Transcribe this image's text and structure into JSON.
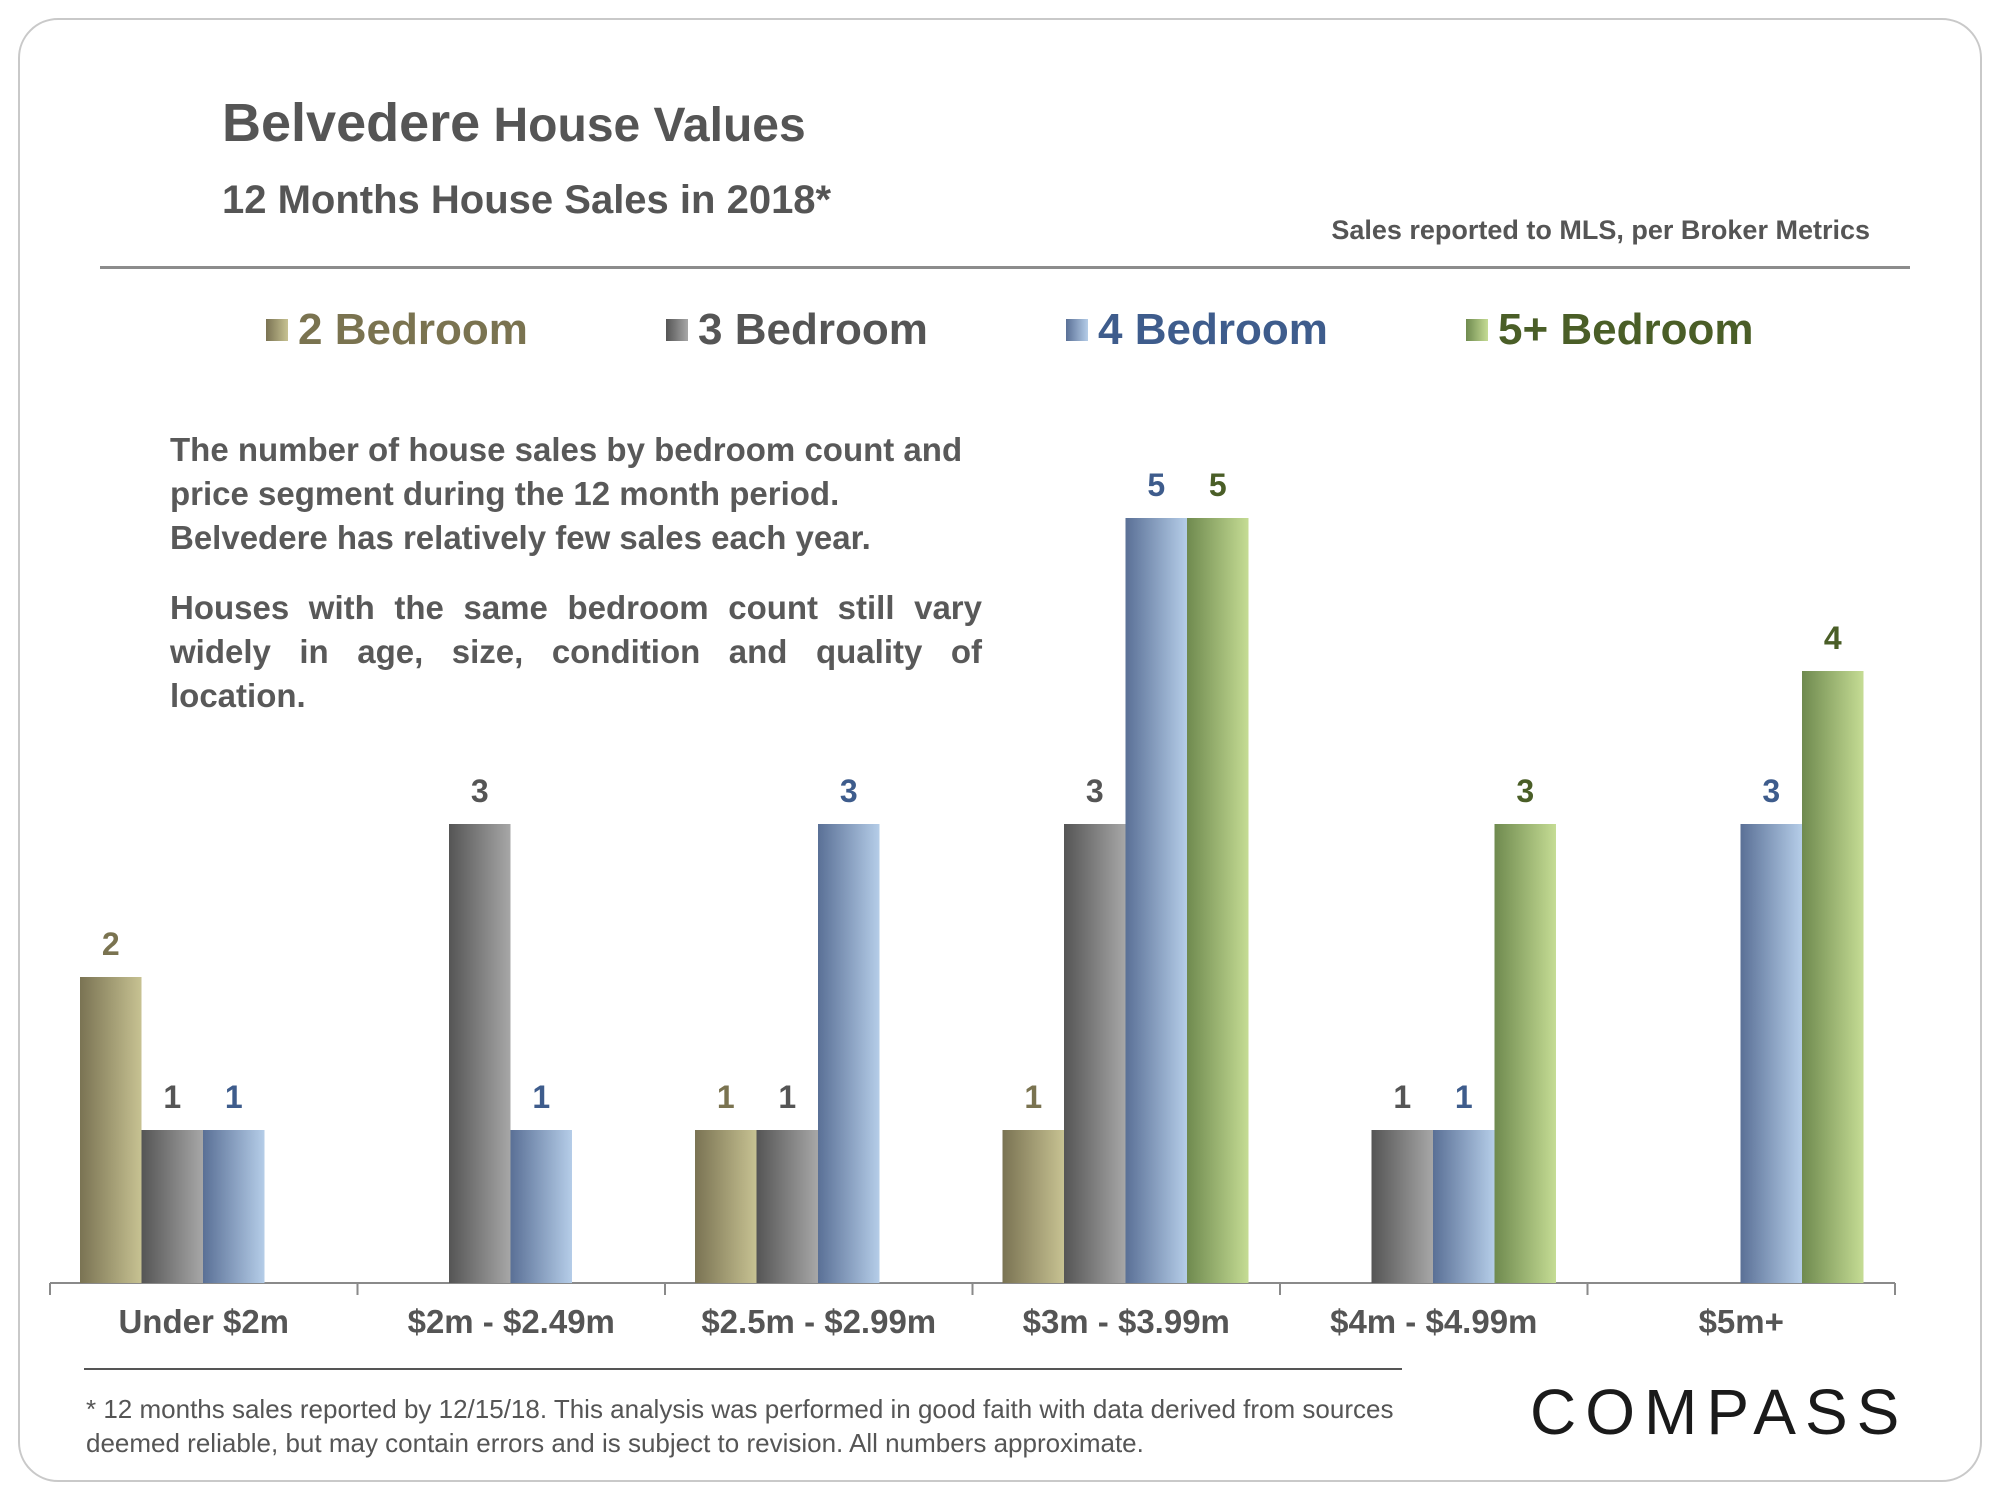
{
  "title_part1": "Belvedere",
  "title_part2": " House Values",
  "subtitle": "12 Months House Sales in 2018*",
  "source_note": "Sales reported to MLS, per Broker Metrics",
  "description": {
    "p1": "The number of house sales by bedroom count and price segment during the 12 month period. Belvedere has relatively few sales each year.",
    "p2": "Houses with the same bedroom count still vary widely in age, size, condition and quality of location."
  },
  "footnote": "* 12 months sales reported by 12/15/18. This analysis was performed in good faith with data derived from sources deemed reliable, but may contain errors and is subject to revision. All numbers approximate.",
  "logo_text": "COMPASS",
  "chart_data": {
    "type": "bar",
    "title": "12 Months House Sales in 2018*",
    "xlabel": "",
    "ylabel": "",
    "ylim": [
      0,
      6
    ],
    "grid": false,
    "legend_position": "top",
    "categories": [
      "Under $2m",
      "$2m - $2.49m",
      "$2.5m - $2.99m",
      "$3m - $3.99m",
      "$4m - $4.99m",
      "$5m+"
    ],
    "series": [
      {
        "name": "2 Bedroom",
        "values": [
          2,
          null,
          1,
          1,
          null,
          null
        ],
        "color": "#7a7353",
        "color_light": "#c7c292",
        "label_color": "#7a7350"
      },
      {
        "name": "3 Bedroom",
        "values": [
          1,
          3,
          1,
          3,
          1,
          null
        ],
        "color": "#555555",
        "color_light": "#a7a7a7",
        "label_color": "#555555"
      },
      {
        "name": "4 Bedroom",
        "values": [
          1,
          1,
          3,
          5,
          1,
          3
        ],
        "color": "#5a7096",
        "color_light": "#b5cde8",
        "label_color": "#3e5c8c"
      },
      {
        "name": "5+ Bedroom",
        "values": [
          null,
          null,
          null,
          5,
          3,
          4
        ],
        "color": "#6f8a4f",
        "color_light": "#c5dc94",
        "label_color": "#4a5e27"
      }
    ]
  }
}
